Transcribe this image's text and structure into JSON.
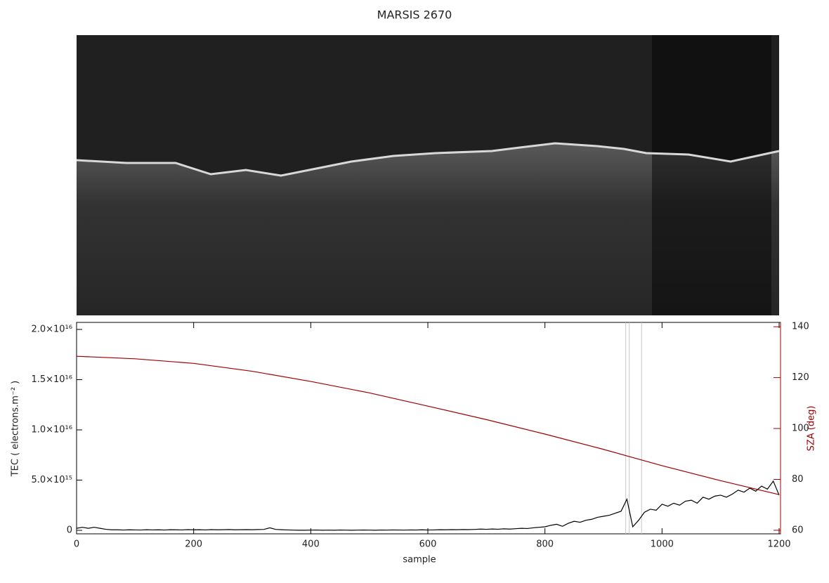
{
  "chart_data": {
    "type": "line",
    "title": "MARSIS 2670",
    "xlabel": "sample",
    "ylabel": "TEC ( electrons.m⁻² )",
    "y2label": "SZA (deg)",
    "xlim": [
      0,
      1200
    ],
    "xticks": [
      0,
      200,
      400,
      600,
      800,
      1000,
      1200
    ],
    "ylim": [
      -350000000000000.0,
      2.07e+16
    ],
    "yticks": [
      0,
      {
        "value": 5000000000000000.0,
        "label": "5.0×10¹⁵"
      },
      {
        "value": 1e+16,
        "label": "1.0×10¹⁶"
      },
      {
        "value": 1.5e+16,
        "label": "1.5×10¹⁶"
      },
      {
        "value": 2e+16,
        "label": "2.0×10¹⁶"
      }
    ],
    "y2lim": [
      58.6,
      141.7
    ],
    "y2ticks": [
      60,
      80,
      100,
      120,
      140
    ],
    "y2color": "#a00000",
    "vlines": [
      938,
      944,
      965
    ],
    "vline_color": "#c8c8c8",
    "series": [
      {
        "name": "TEC",
        "color": "#000000",
        "x": [
          0,
          10,
          20,
          30,
          40,
          50,
          60,
          70,
          80,
          90,
          100,
          110,
          120,
          130,
          140,
          150,
          160,
          170,
          180,
          190,
          200,
          210,
          220,
          230,
          240,
          250,
          260,
          270,
          280,
          290,
          300,
          310,
          320,
          330,
          340,
          350,
          360,
          370,
          380,
          390,
          400,
          410,
          420,
          430,
          440,
          450,
          460,
          470,
          480,
          490,
          500,
          510,
          520,
          530,
          540,
          550,
          560,
          570,
          580,
          590,
          600,
          610,
          620,
          630,
          640,
          650,
          660,
          670,
          680,
          690,
          700,
          710,
          720,
          730,
          740,
          750,
          760,
          770,
          780,
          790,
          800,
          810,
          820,
          830,
          840,
          850,
          860,
          870,
          880,
          890,
          900,
          910,
          920,
          930,
          940,
          950,
          960,
          970,
          980,
          990,
          1000,
          1010,
          1020,
          1030,
          1040,
          1050,
          1060,
          1070,
          1080,
          1090,
          1100,
          1110,
          1120,
          1130,
          1140,
          1150,
          1160,
          1170,
          1180,
          1190,
          1200
        ],
        "values": [
          200000000000000.0,
          300000000000000.0,
          200000000000000.0,
          300000000000000.0,
          200000000000000.0,
          100000000000000.0,
          50000000000000.0,
          50000000000000.0,
          30000000000000.0,
          50000000000000.0,
          40000000000000.0,
          30000000000000.0,
          60000000000000.0,
          40000000000000.0,
          50000000000000.0,
          30000000000000.0,
          60000000000000.0,
          50000000000000.0,
          40000000000000.0,
          70000000000000.0,
          50000000000000.0,
          60000000000000.0,
          40000000000000.0,
          70000000000000.0,
          50000000000000.0,
          60000000000000.0,
          80000000000000.0,
          50000000000000.0,
          60000000000000.0,
          70000000000000.0,
          60000000000000.0,
          80000000000000.0,
          90000000000000.0,
          250000000000000.0,
          90000000000000.0,
          60000000000000.0,
          40000000000000.0,
          20000000000000.0,
          10000000000000.0,
          10000000000000.0,
          20000000000000.0,
          30000000000000.0,
          10000000000000.0,
          20000000000000.0,
          10000000000000.0,
          30000000000000.0,
          20000000000000.0,
          10000000000000.0,
          20000000000000.0,
          30000000000000.0,
          20000000000000.0,
          10000000000000.0,
          30000000000000.0,
          20000000000000.0,
          40000000000000.0,
          30000000000000.0,
          20000000000000.0,
          40000000000000.0,
          30000000000000.0,
          50000000000000.0,
          30000000000000.0,
          40000000000000.0,
          60000000000000.0,
          50000000000000.0,
          70000000000000.0,
          60000000000000.0,
          80000000000000.0,
          70000000000000.0,
          90000000000000.0,
          120000000000000.0,
          100000000000000.0,
          130000000000000.0,
          110000000000000.0,
          150000000000000.0,
          120000000000000.0,
          160000000000000.0,
          200000000000000.0,
          180000000000000.0,
          250000000000000.0,
          300000000000000.0,
          350000000000000.0,
          500000000000000.0,
          600000000000000.0,
          400000000000000.0,
          700000000000000.0,
          900000000000000.0,
          800000000000000.0,
          1000000000000000.0,
          1100000000000000.0,
          1300000000000000.0,
          1400000000000000.0,
          1500000000000000.0,
          1700000000000000.0,
          1900000000000000.0,
          3100000000000000.0,
          350000000000000.0,
          1000000000000000.0,
          1800000000000000.0,
          2100000000000000.0,
          2000000000000000.0,
          2600000000000000.0,
          2400000000000000.0,
          2700000000000000.0,
          2500000000000000.0,
          2900000000000000.0,
          3000000000000000.0,
          2700000000000000.0,
          3300000000000000.0,
          3100000000000000.0,
          3400000000000000.0,
          3500000000000000.0,
          3300000000000000.0,
          3600000000000000.0,
          4000000000000000.0,
          3800000000000000.0,
          4200000000000000.0,
          3900000000000000.0,
          4400000000000000.0,
          4100000000000000.0,
          4900000000000000.0,
          3500000000000000.0
        ]
      },
      {
        "name": "SZA",
        "color": "#a00000",
        "axis": "y2",
        "x": [
          0,
          100,
          200,
          300,
          400,
          500,
          600,
          700,
          800,
          900,
          1000,
          1100,
          1200
        ],
        "values": [
          128.4,
          127.4,
          125.6,
          122.5,
          118.5,
          114,
          108.8,
          103.5,
          97.8,
          91.8,
          85.4,
          79.5,
          74
        ]
      }
    ]
  }
}
